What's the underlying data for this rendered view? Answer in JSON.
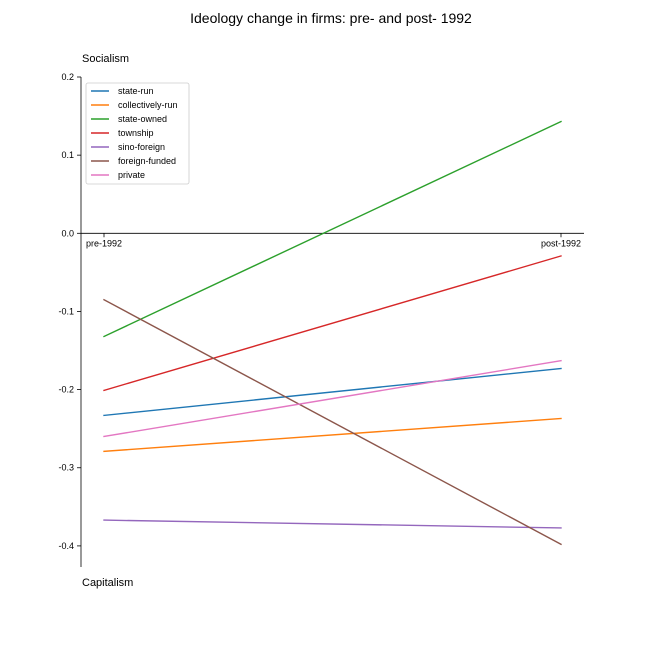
{
  "chart_data": {
    "type": "line",
    "title": "Ideology change in firms: pre- and post- 1992",
    "top_label": "Socialism",
    "bottom_label": "Capitalism",
    "categories": [
      "pre-1992",
      "post-1992"
    ],
    "y_ticks": [
      "0.2",
      "0.1",
      "0.0",
      "-0.1",
      "-0.2",
      "-0.3",
      "-0.4"
    ],
    "y_tick_values": [
      0.2,
      0.1,
      0.0,
      -0.1,
      -0.2,
      -0.3,
      -0.4
    ],
    "ylim": [
      -0.427,
      0.2
    ],
    "legend_position": "upper-left",
    "grid": false,
    "series": [
      {
        "name": "state-run",
        "color": "#1f77b4",
        "values": [
          -0.233,
          -0.173
        ]
      },
      {
        "name": "collectively-run",
        "color": "#ff7f0e",
        "values": [
          -0.279,
          -0.237
        ]
      },
      {
        "name": "state-owned",
        "color": "#2ca02c",
        "values": [
          -0.132,
          0.143
        ]
      },
      {
        "name": "township",
        "color": "#d62728",
        "values": [
          -0.201,
          -0.029
        ]
      },
      {
        "name": "sino-foreign",
        "color": "#9467bd",
        "values": [
          -0.367,
          -0.377
        ]
      },
      {
        "name": "foreign-funded",
        "color": "#8c564b",
        "values": [
          -0.085,
          -0.398
        ]
      },
      {
        "name": "private",
        "color": "#e377c2",
        "values": [
          -0.26,
          -0.163
        ]
      }
    ]
  }
}
